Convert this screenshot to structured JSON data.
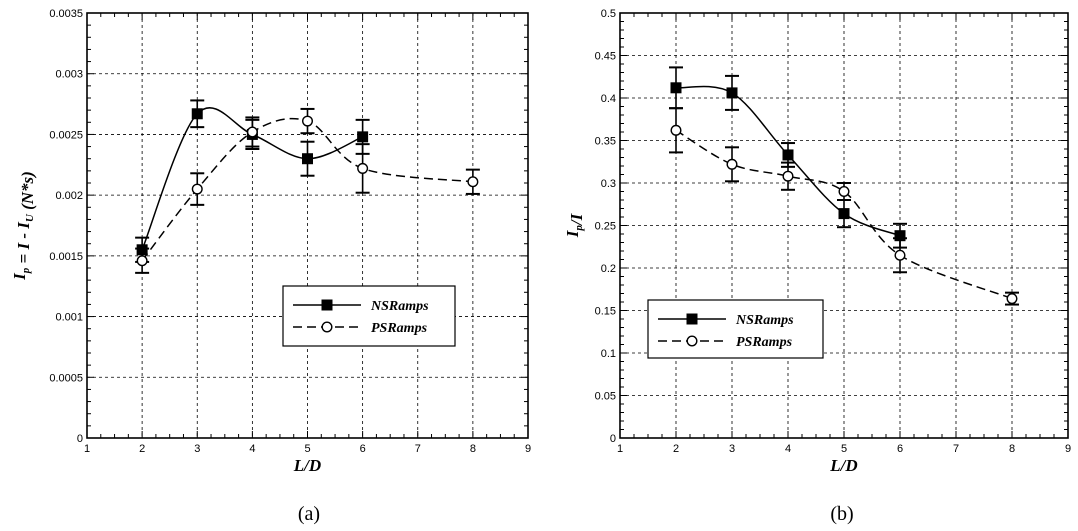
{
  "chart_data": [
    {
      "type": "line",
      "caption": "(a)",
      "xlabel": "L/D",
      "ylabel": "I_p = I - I_U (N*s)",
      "xlim": [
        1,
        9
      ],
      "ylim": [
        0,
        0.0035
      ],
      "x_ticks": [
        "1",
        "2",
        "3",
        "4",
        "5",
        "6",
        "7",
        "8",
        "9"
      ],
      "y_ticks": [
        "0",
        "0.0005",
        "0.001",
        "0.0015",
        "0.002",
        "0.0025",
        "0.003",
        "0.0035"
      ],
      "grid": true,
      "legend_position": "lower-right",
      "series": [
        {
          "name": "NSRamps",
          "marker": "filled-square",
          "line_style": "solid",
          "x": [
            2,
            3,
            4,
            5,
            6
          ],
          "y": [
            0.00155,
            0.00267,
            0.0025,
            0.0023,
            0.00248
          ],
          "err": [
            0.0001,
            0.00011,
            0.00012,
            0.00014,
            0.00014
          ]
        },
        {
          "name": "PSRamps",
          "marker": "open-circle",
          "line_style": "dashed",
          "x": [
            2,
            3,
            4,
            5,
            6,
            8
          ],
          "y": [
            0.00146,
            0.00205,
            0.00252,
            0.00261,
            0.00222,
            0.00211
          ],
          "err": [
            0.0001,
            0.00013,
            0.00012,
            0.0001,
            0.0002,
            0.0001
          ]
        }
      ]
    },
    {
      "type": "line",
      "caption": "(b)",
      "xlabel": "L/D",
      "ylabel": "I_p/I",
      "xlim": [
        1,
        9
      ],
      "ylim": [
        0,
        0.5
      ],
      "x_ticks": [
        "1",
        "2",
        "3",
        "4",
        "5",
        "6",
        "7",
        "8",
        "9"
      ],
      "y_ticks": [
        "0",
        "0.05",
        "0.1",
        "0.15",
        "0.2",
        "0.25",
        "0.3",
        "0.35",
        "0.4",
        "0.45",
        "0.5"
      ],
      "grid": true,
      "legend_position": "middle-left",
      "series": [
        {
          "name": "NSRamps",
          "marker": "filled-square",
          "line_style": "solid",
          "x": [
            2,
            3,
            4,
            5,
            6
          ],
          "y": [
            0.412,
            0.406,
            0.333,
            0.264,
            0.238
          ],
          "err": [
            0.024,
            0.02,
            0.014,
            0.016,
            0.014
          ]
        },
        {
          "name": "PSRamps",
          "marker": "open-circle",
          "line_style": "dashed",
          "x": [
            2,
            3,
            4,
            5,
            6,
            8
          ],
          "y": [
            0.362,
            0.322,
            0.308,
            0.29,
            0.215,
            0.164
          ],
          "err": [
            0.026,
            0.02,
            0.016,
            0.01,
            0.02,
            0.007
          ]
        }
      ]
    }
  ]
}
